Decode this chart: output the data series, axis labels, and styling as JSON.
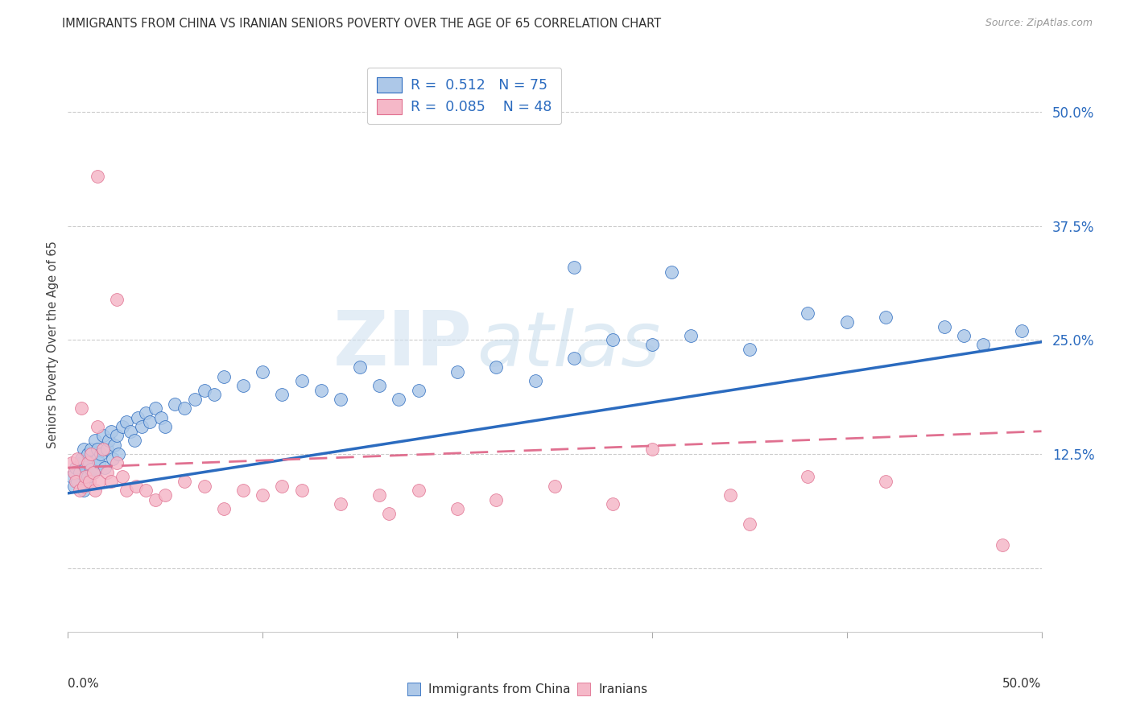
{
  "title": "IMMIGRANTS FROM CHINA VS IRANIAN SENIORS POVERTY OVER THE AGE OF 65 CORRELATION CHART",
  "source": "Source: ZipAtlas.com",
  "ylabel": "Seniors Poverty Over the Age of 65",
  "ytick_labels": [
    "",
    "12.5%",
    "25.0%",
    "37.5%",
    "50.0%"
  ],
  "ytick_values": [
    0.0,
    0.125,
    0.25,
    0.375,
    0.5
  ],
  "xlim": [
    0.0,
    0.5
  ],
  "ylim": [
    -0.07,
    0.56
  ],
  "legend_china_r": "0.512",
  "legend_china_n": "75",
  "legend_iran_r": "0.085",
  "legend_iran_n": "48",
  "legend_label_china": "Immigrants from China",
  "legend_label_iran": "Iranians",
  "china_color": "#adc8e8",
  "iran_color": "#f5b8c8",
  "china_line_color": "#2b6bbf",
  "iran_line_color": "#e07090",
  "background_color": "#ffffff",
  "watermark_zip": "ZIP",
  "watermark_atlas": "atlas",
  "china_line_start_y": 0.082,
  "china_line_end_y": 0.248,
  "iran_line_start_y": 0.11,
  "iran_line_end_y": 0.15,
  "china_x": [
    0.002,
    0.003,
    0.004,
    0.005,
    0.006,
    0.007,
    0.007,
    0.008,
    0.008,
    0.009,
    0.009,
    0.01,
    0.01,
    0.011,
    0.012,
    0.012,
    0.013,
    0.014,
    0.015,
    0.015,
    0.016,
    0.017,
    0.018,
    0.019,
    0.02,
    0.021,
    0.022,
    0.023,
    0.024,
    0.025,
    0.026,
    0.028,
    0.03,
    0.032,
    0.034,
    0.036,
    0.038,
    0.04,
    0.042,
    0.045,
    0.048,
    0.05,
    0.055,
    0.06,
    0.065,
    0.07,
    0.075,
    0.08,
    0.09,
    0.1,
    0.11,
    0.12,
    0.13,
    0.14,
    0.15,
    0.16,
    0.17,
    0.18,
    0.2,
    0.22,
    0.24,
    0.26,
    0.28,
    0.3,
    0.32,
    0.35,
    0.38,
    0.4,
    0.42,
    0.45,
    0.46,
    0.47,
    0.49,
    0.31,
    0.26
  ],
  "china_y": [
    0.1,
    0.09,
    0.11,
    0.095,
    0.105,
    0.115,
    0.12,
    0.085,
    0.13,
    0.095,
    0.11,
    0.1,
    0.125,
    0.115,
    0.108,
    0.13,
    0.105,
    0.14,
    0.12,
    0.13,
    0.115,
    0.125,
    0.145,
    0.11,
    0.13,
    0.14,
    0.15,
    0.12,
    0.135,
    0.145,
    0.125,
    0.155,
    0.16,
    0.15,
    0.14,
    0.165,
    0.155,
    0.17,
    0.16,
    0.175,
    0.165,
    0.155,
    0.18,
    0.175,
    0.185,
    0.195,
    0.19,
    0.21,
    0.2,
    0.215,
    0.19,
    0.205,
    0.195,
    0.185,
    0.22,
    0.2,
    0.185,
    0.195,
    0.215,
    0.22,
    0.205,
    0.23,
    0.25,
    0.245,
    0.255,
    0.24,
    0.28,
    0.27,
    0.275,
    0.265,
    0.255,
    0.245,
    0.26,
    0.325,
    0.33
  ],
  "iran_x": [
    0.002,
    0.003,
    0.004,
    0.005,
    0.006,
    0.007,
    0.008,
    0.009,
    0.01,
    0.011,
    0.012,
    0.013,
    0.014,
    0.015,
    0.016,
    0.018,
    0.02,
    0.022,
    0.025,
    0.028,
    0.03,
    0.035,
    0.04,
    0.045,
    0.05,
    0.06,
    0.07,
    0.08,
    0.09,
    0.1,
    0.11,
    0.12,
    0.14,
    0.16,
    0.18,
    0.2,
    0.22,
    0.25,
    0.28,
    0.3,
    0.35,
    0.38,
    0.42,
    0.34,
    0.015,
    0.025,
    0.165,
    0.48
  ],
  "iran_y": [
    0.115,
    0.105,
    0.095,
    0.12,
    0.085,
    0.175,
    0.09,
    0.1,
    0.115,
    0.095,
    0.125,
    0.105,
    0.085,
    0.155,
    0.095,
    0.13,
    0.105,
    0.095,
    0.115,
    0.1,
    0.085,
    0.09,
    0.085,
    0.075,
    0.08,
    0.095,
    0.09,
    0.065,
    0.085,
    0.08,
    0.09,
    0.085,
    0.07,
    0.08,
    0.085,
    0.065,
    0.075,
    0.09,
    0.07,
    0.13,
    0.048,
    0.1,
    0.095,
    0.08,
    0.43,
    0.295,
    0.06,
    0.025
  ]
}
